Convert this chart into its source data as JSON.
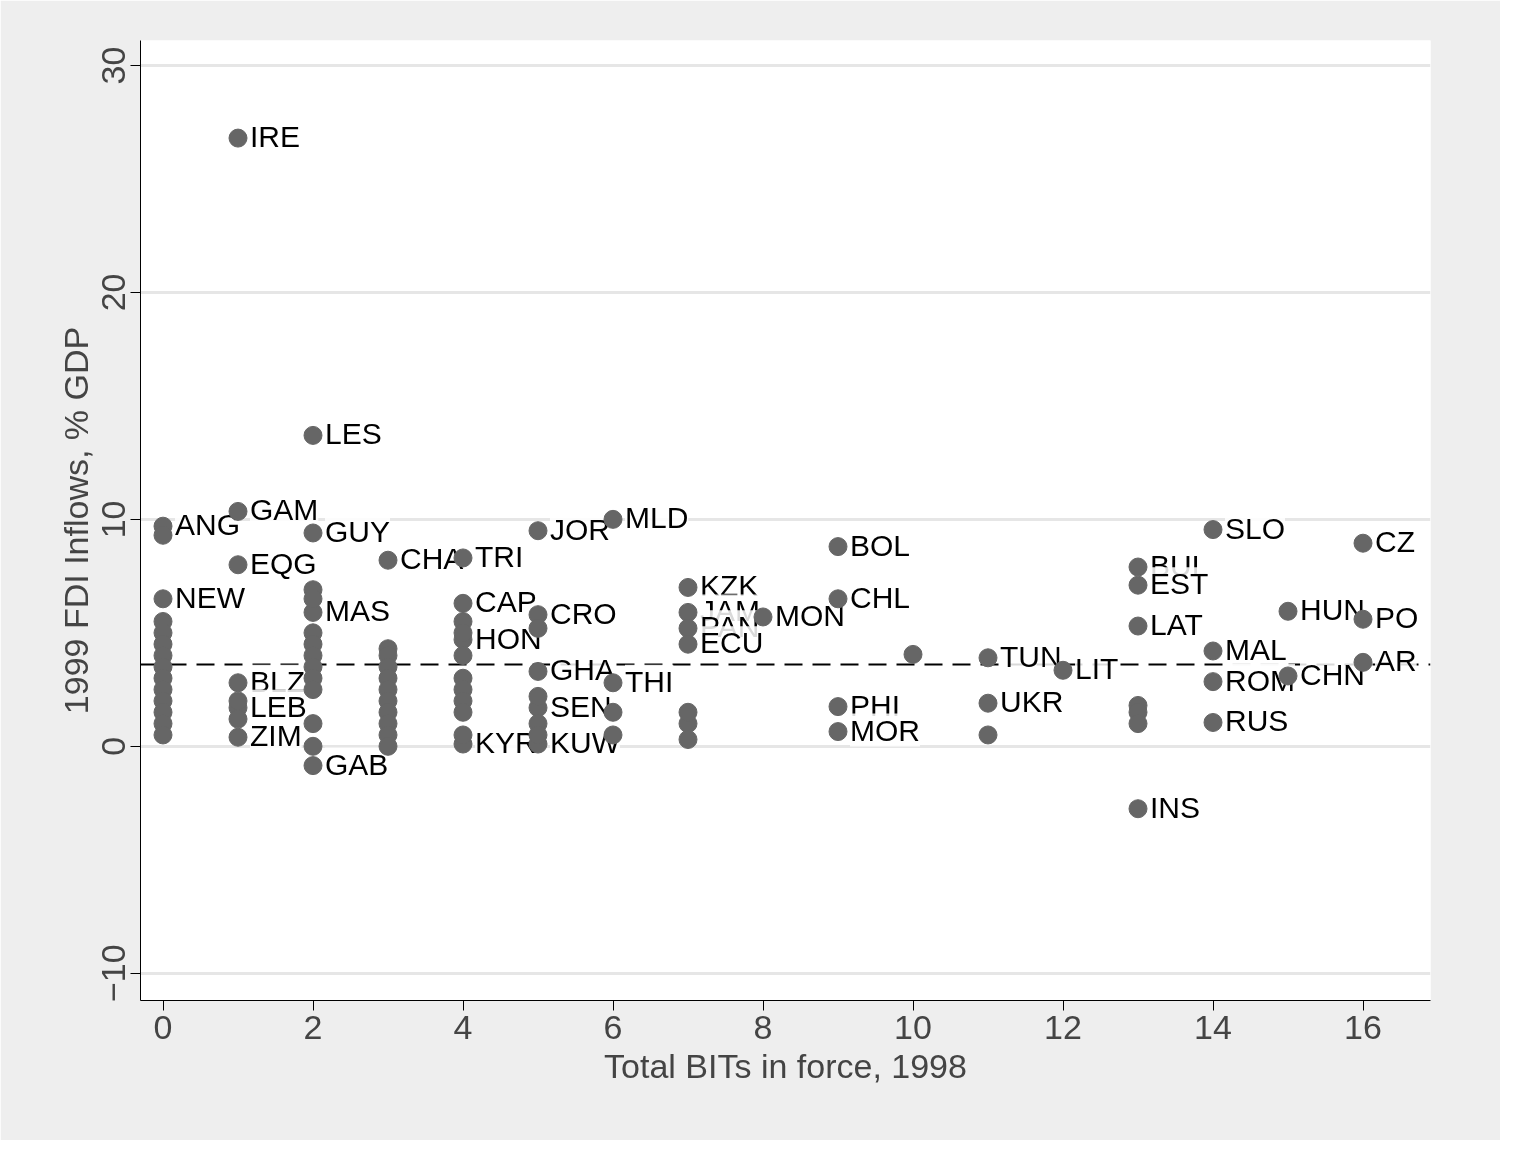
{
  "chart_data": {
    "type": "scatter",
    "xlabel": "Total BITs in force, 1998",
    "ylabel": "1999 FDI Inflows, % GDP",
    "xlim": [
      -0.3,
      16.9
    ],
    "ylim": [
      -11.2,
      31.1
    ],
    "xticks": [
      0,
      2,
      4,
      6,
      8,
      10,
      12,
      14,
      16
    ],
    "yticks": [
      -10,
      0,
      10,
      20,
      30
    ],
    "grid": "y",
    "marker": "circle",
    "ref_lines": [
      {
        "axis": "y",
        "value": 3.6,
        "label": null,
        "color": "#000000",
        "line_style": "dashed"
      }
    ],
    "series": [
      {
        "color": "#666666",
        "x": [
          1,
          2,
          1,
          0,
          2,
          1,
          3,
          4,
          5,
          6,
          0,
          7,
          4,
          5,
          8,
          7,
          7,
          7,
          4,
          9,
          9,
          10,
          11,
          12,
          9,
          9,
          11,
          11,
          14,
          13,
          13,
          13,
          13,
          14,
          14,
          14,
          15,
          15,
          16,
          16,
          16,
          6,
          5,
          2,
          1,
          1,
          1,
          2,
          2,
          3,
          5,
          5,
          4,
          0,
          0,
          0,
          0,
          0,
          0,
          0,
          0,
          0,
          0,
          0,
          0,
          1,
          1,
          2,
          2,
          2,
          2,
          2,
          2,
          2,
          2,
          2,
          3,
          3,
          3,
          3,
          3,
          3,
          3,
          3,
          3,
          4,
          4,
          4,
          4,
          4,
          4,
          4,
          4,
          5,
          5,
          5,
          5,
          6,
          6,
          7,
          7,
          7,
          13,
          13,
          13
        ],
        "values": [
          26.8,
          13.7,
          10.35,
          9.7,
          9.4,
          8.0,
          8.2,
          8.3,
          9.5,
          10.0,
          6.5,
          7.0,
          6.3,
          5.8,
          5.7,
          5.9,
          5.2,
          4.5,
          4.7,
          8.8,
          6.5,
          4.05,
          3.9,
          3.35,
          1.75,
          0.65,
          1.9,
          0.5,
          9.55,
          7.9,
          7.1,
          5.3,
          -2.75,
          4.2,
          2.85,
          1.05,
          5.95,
          3.1,
          8.95,
          5.6,
          3.7,
          2.8,
          3.3,
          -0.85,
          2.8,
          1.7,
          0.4,
          5.9,
          6.9,
          4.3,
          1.7,
          0.1,
          0.1,
          9.3,
          5.5,
          5.0,
          4.5,
          4.0,
          3.5,
          3.0,
          2.5,
          2.0,
          1.5,
          1.0,
          0.5,
          2.0,
          1.2,
          6.5,
          5.0,
          4.5,
          4.0,
          3.5,
          3.0,
          2.5,
          1.0,
          0.0,
          4.0,
          3.5,
          3.0,
          2.5,
          2.0,
          1.5,
          1.0,
          0.5,
          0.0,
          5.5,
          5.0,
          4.0,
          3.0,
          2.5,
          2.0,
          1.5,
          0.5,
          5.2,
          2.2,
          1.0,
          0.5,
          1.5,
          0.5,
          1.0,
          0.3,
          1.5,
          1.8,
          1.5,
          1.0
        ],
        "value_labels": [
          "IRE",
          "LES",
          "GAM",
          "ANG",
          "GUY",
          "EQG",
          "CHA",
          "TRI",
          "JOR",
          "MLD",
          "NEW",
          "KZK",
          "CAP",
          "CRO",
          "MON",
          "JAM",
          "PAN",
          "ECU",
          "HON",
          "BOL",
          "CHL",
          null,
          "TUN",
          "LIT",
          "PHI",
          "MOR",
          "UKR",
          null,
          "SLO",
          "BUL",
          "EST",
          "LAT",
          "INS",
          "MAL",
          "ROM",
          "RUS",
          "HUN",
          "CHN",
          "CZ",
          "PO",
          "AR",
          "THI",
          "GHA",
          "GAB",
          "BLZ",
          "LEB",
          "ZIM",
          "MAS",
          null,
          null,
          "SEN",
          "KUW",
          "KYR",
          null,
          null,
          null,
          null,
          null,
          null,
          null,
          null,
          null,
          null,
          null,
          null,
          null,
          null,
          null,
          null,
          null,
          null,
          null,
          null,
          null,
          null,
          null,
          null,
          null,
          null,
          null,
          null,
          null,
          null,
          null,
          null,
          null,
          null,
          null,
          null,
          null,
          null,
          null,
          null,
          null,
          null,
          null,
          null,
          null,
          null,
          null,
          null,
          null,
          null,
          null,
          null
        ]
      }
    ]
  }
}
